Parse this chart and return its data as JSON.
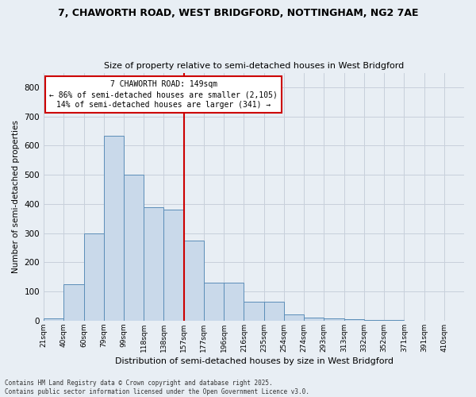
{
  "title_line1": "7, CHAWORTH ROAD, WEST BRIDGFORD, NOTTINGHAM, NG2 7AE",
  "title_line2": "Size of property relative to semi-detached houses in West Bridgford",
  "xlabel": "Distribution of semi-detached houses by size in West Bridgford",
  "ylabel": "Number of semi-detached properties",
  "bin_labels": [
    "21sqm",
    "40sqm",
    "60sqm",
    "79sqm",
    "99sqm",
    "118sqm",
    "138sqm",
    "157sqm",
    "177sqm",
    "196sqm",
    "216sqm",
    "235sqm",
    "254sqm",
    "274sqm",
    "293sqm",
    "313sqm",
    "332sqm",
    "352sqm",
    "371sqm",
    "391sqm",
    "410sqm"
  ],
  "bar_heights": [
    8,
    125,
    300,
    635,
    500,
    390,
    380,
    275,
    130,
    130,
    65,
    65,
    22,
    10,
    8,
    5,
    3,
    2,
    0,
    0,
    0
  ],
  "bar_color": "#c9d9ea",
  "bar_edge_color": "#5b8db8",
  "vline_bin_index": 7,
  "annotation_title": "7 CHAWORTH ROAD: 149sqm",
  "annotation_line2": "← 86% of semi-detached houses are smaller (2,105)",
  "annotation_line3": "14% of semi-detached houses are larger (341) →",
  "annotation_box_facecolor": "#ffffff",
  "annotation_box_edgecolor": "#cc0000",
  "vline_color": "#cc0000",
  "ylim": [
    0,
    850
  ],
  "yticks": [
    0,
    100,
    200,
    300,
    400,
    500,
    600,
    700,
    800
  ],
  "grid_color": "#c8d0db",
  "background_color": "#e8eef4",
  "footer_line1": "Contains HM Land Registry data © Crown copyright and database right 2025.",
  "footer_line2": "Contains public sector information licensed under the Open Government Licence v3.0."
}
